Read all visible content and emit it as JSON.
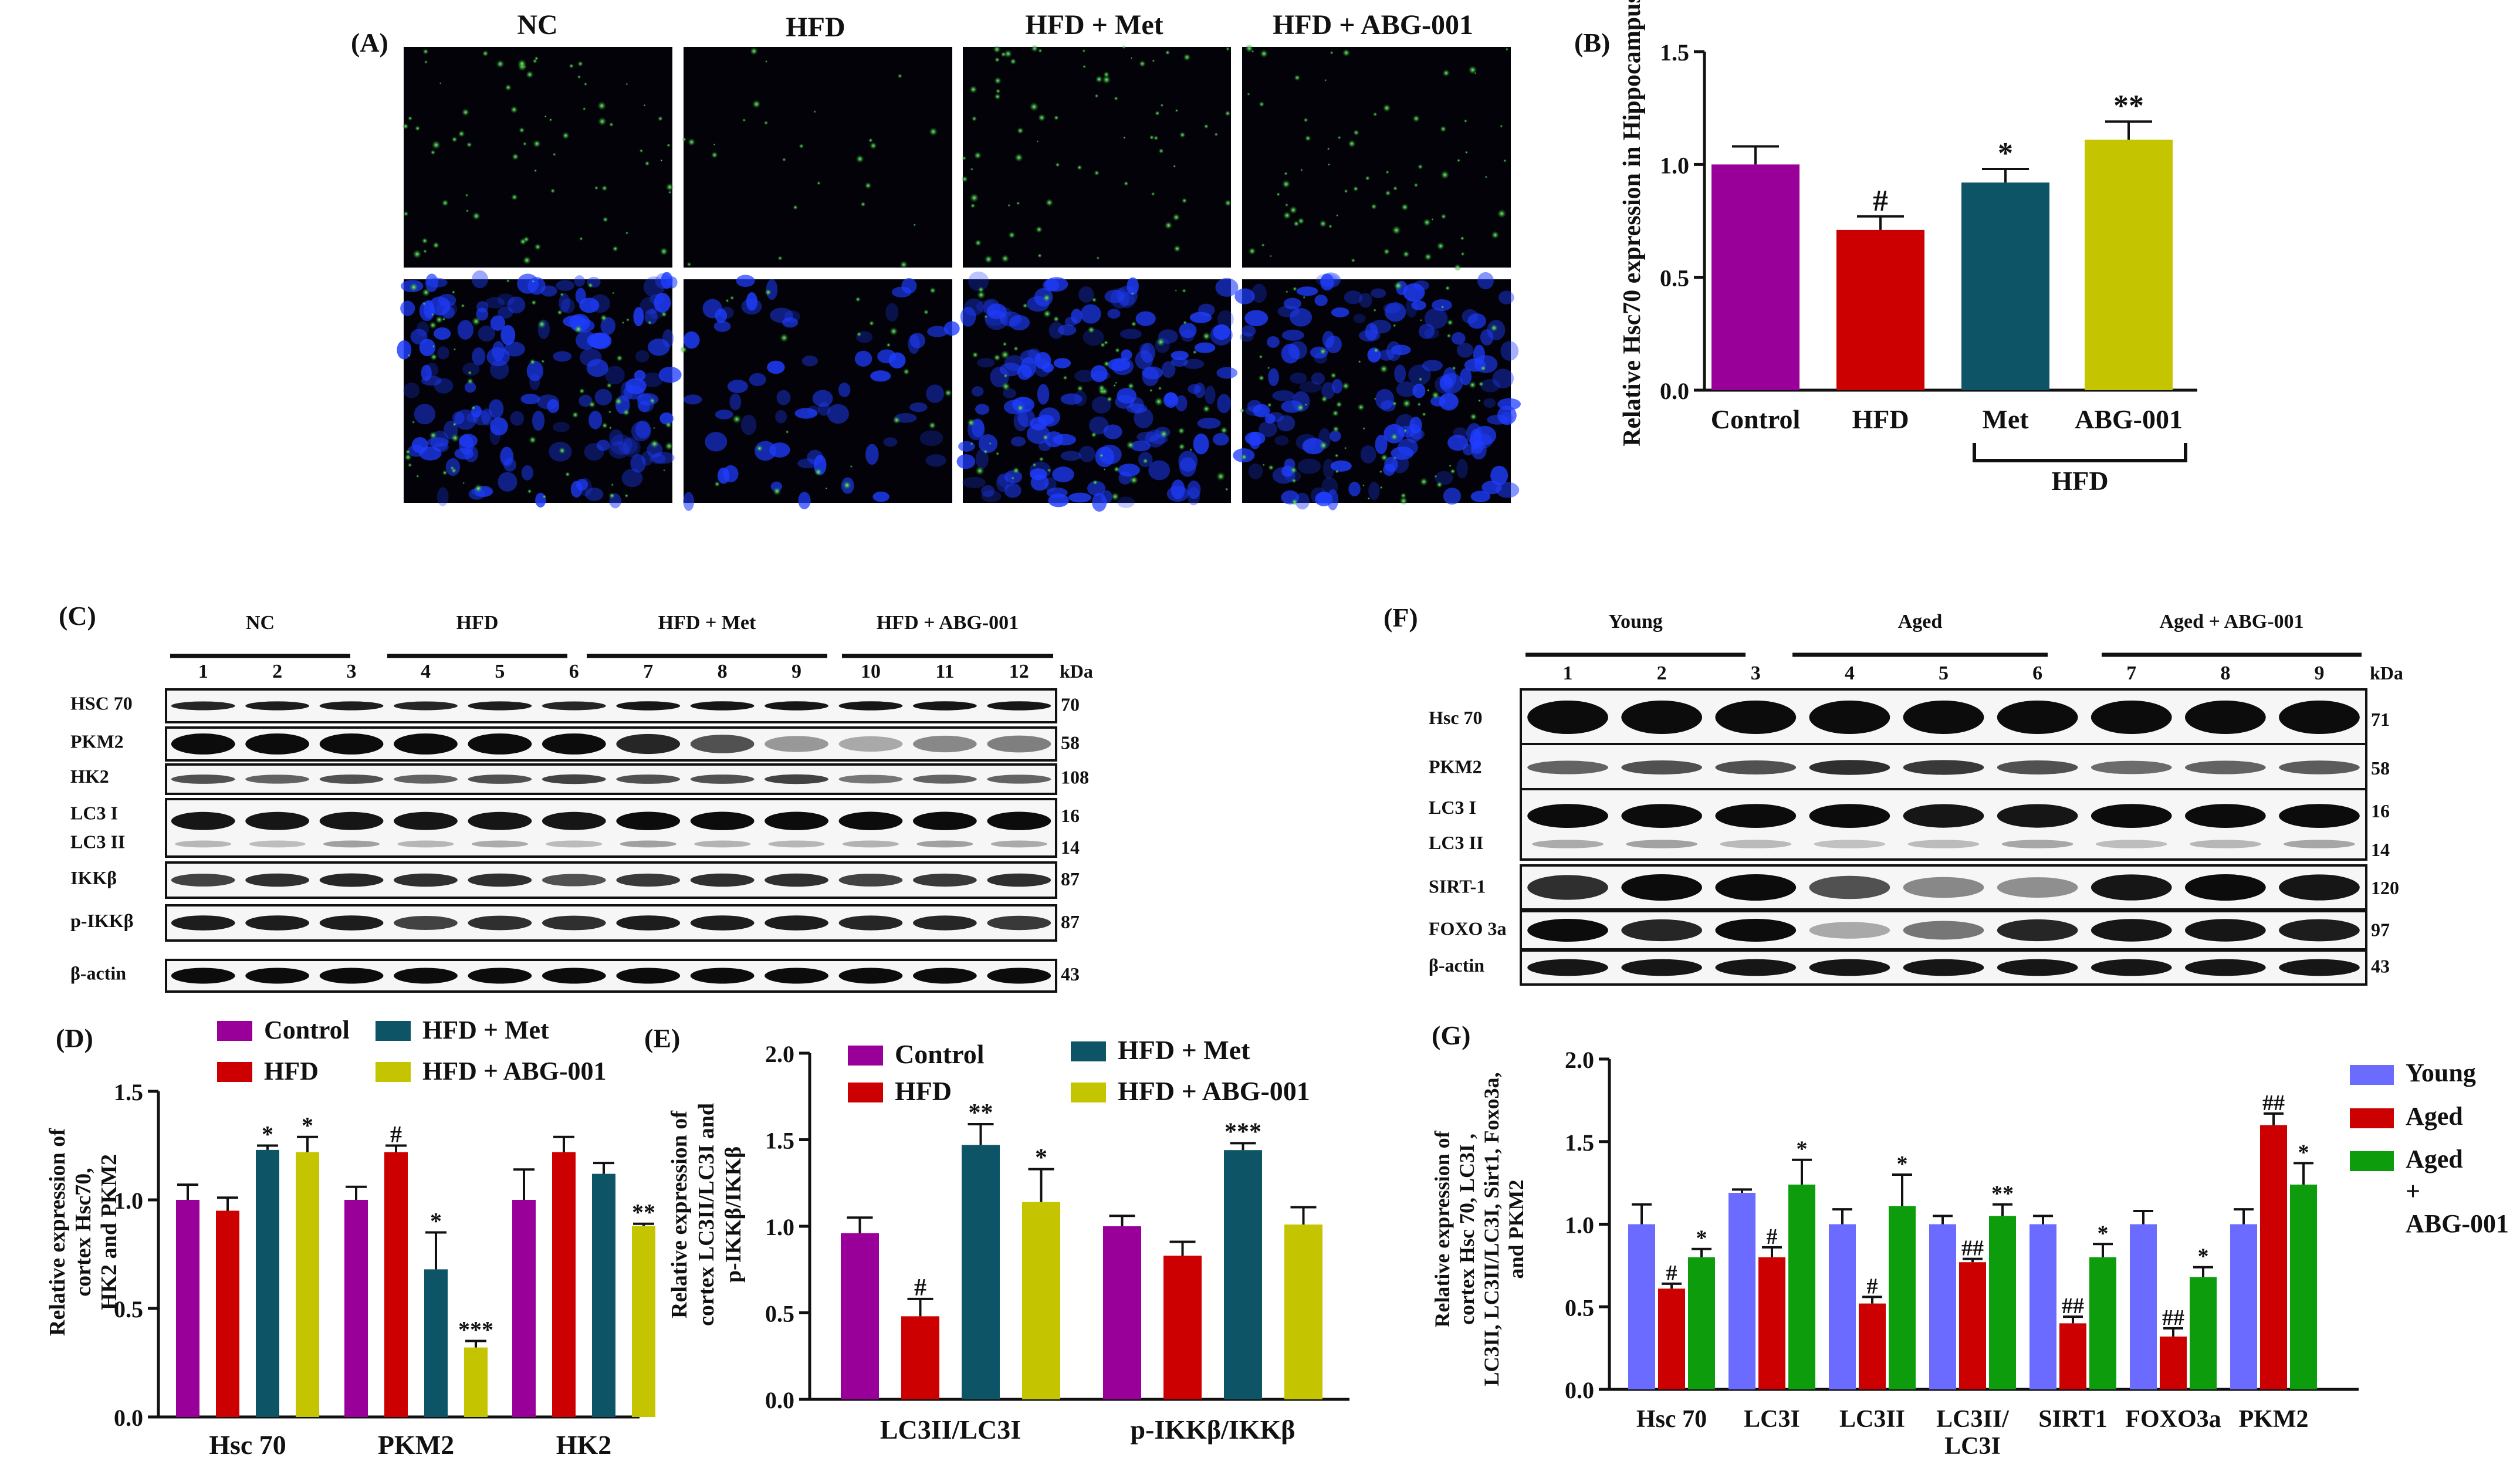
{
  "panels": {
    "A": {
      "label": "(A)",
      "columns": [
        "NC",
        "HFD",
        "HFD + Met",
        "HFD + ABG-001"
      ]
    },
    "C": {
      "label": "(C)",
      "groups": [
        "NC",
        "HFD",
        "HFD + Met",
        "HFD + ABG-001"
      ],
      "lanes": [
        "1",
        "2",
        "3",
        "4",
        "5",
        "6",
        "7",
        "8",
        "9",
        "10",
        "11",
        "12"
      ],
      "kda_label": "kDa",
      "rows": [
        {
          "label": "HSC 70",
          "kda": "70"
        },
        {
          "label": "PKM2",
          "kda": "58"
        },
        {
          "label": "HK2",
          "kda": "108"
        },
        {
          "label": "LC3 I",
          "label2": "LC3 II",
          "kda": "16",
          "kda2": "14"
        },
        {
          "label": "IKKβ",
          "kda": "87"
        },
        {
          "label": "p-IKKβ",
          "kda": "87"
        },
        {
          "label": "β-actin",
          "kda": "43"
        }
      ]
    },
    "F": {
      "label": "(F)",
      "groups": [
        "Young",
        "Aged",
        "Aged + ABG-001"
      ],
      "lanes": [
        "1",
        "2",
        "3",
        "4",
        "5",
        "6",
        "7",
        "8",
        "9"
      ],
      "kda_label": "kDa",
      "rows": [
        {
          "label": "Hsc 70",
          "kda": "71"
        },
        {
          "label": "PKM2",
          "kda": "58"
        },
        {
          "label": "LC3 I",
          "label2": "LC3 II",
          "kda": "16",
          "kda2": "14"
        },
        {
          "label": "SIRT-1",
          "kda": "120"
        },
        {
          "label": "FOXO 3a",
          "kda": "97"
        },
        {
          "label": "β-actin",
          "kda": "43"
        }
      ]
    }
  },
  "colors": {
    "purple": "#990099",
    "red": "#cc0000",
    "teal": "#0d5566",
    "olive": "#c4c400",
    "blue": "#6b6bff",
    "green": "#0c9c0c"
  },
  "chart_data": [
    {
      "id": "B",
      "panel_label": "(B)",
      "type": "bar",
      "ylabel": "Relative Hsc70 expression in Hippocampus",
      "ylim": [
        0,
        1.5
      ],
      "yticks": [
        "0.0",
        "0.5",
        "1.0",
        "1.5"
      ],
      "categories": [
        "Control",
        "HFD",
        "Met",
        "ABG-001"
      ],
      "values": [
        1.0,
        0.71,
        0.92,
        1.11
      ],
      "errors": [
        0.08,
        0.06,
        0.06,
        0.08
      ],
      "sig": [
        "",
        "#",
        "*",
        "**"
      ],
      "group_bracket": "HFD"
    },
    {
      "id": "D",
      "panel_label": "(D)",
      "type": "bar",
      "ylabel": "Relative expression of cortex Hsc70, HK2 and PKM2",
      "ylim": [
        0,
        1.5
      ],
      "yticks": [
        "0.0",
        "0.5",
        "1.0",
        "1.5"
      ],
      "categories": [
        "Hsc 70",
        "PKM2",
        "HK2"
      ],
      "series": [
        {
          "name": "Control",
          "values": [
            1.0,
            1.0,
            1.0
          ],
          "errors": [
            0.07,
            0.06,
            0.14
          ],
          "sig": [
            "",
            "",
            ""
          ]
        },
        {
          "name": "HFD",
          "values": [
            0.95,
            1.22,
            1.22
          ],
          "errors": [
            0.06,
            0.03,
            0.07
          ],
          "sig": [
            "",
            "#",
            ""
          ]
        },
        {
          "name": "HFD + Met",
          "values": [
            1.23,
            0.68,
            1.12
          ],
          "errors": [
            0.02,
            0.17,
            0.05
          ],
          "sig": [
            "*",
            "*",
            ""
          ]
        },
        {
          "name": "HFD + ABG-001",
          "values": [
            1.22,
            0.32,
            0.88
          ],
          "errors": [
            0.07,
            0.03,
            0.01
          ],
          "sig": [
            "*",
            "***",
            "**"
          ]
        }
      ],
      "legend": [
        "Control",
        "HFD",
        "HFD + Met",
        "HFD + ABG-001"
      ]
    },
    {
      "id": "E",
      "panel_label": "(E)",
      "type": "bar",
      "ylabel": "Relative expression of cortex LC3II/LC3I and p-IKKβ/IKKβ",
      "ylim": [
        0,
        2.0
      ],
      "yticks": [
        "0.0",
        "0.5",
        "1.0",
        "1.5",
        "2.0"
      ],
      "categories": [
        "LC3II/LC3I",
        "p-IKKβ/IKKβ"
      ],
      "series": [
        {
          "name": "Control",
          "values": [
            0.96,
            1.0
          ],
          "errors": [
            0.09,
            0.06
          ],
          "sig": [
            "",
            ""
          ]
        },
        {
          "name": "HFD",
          "values": [
            0.48,
            0.83
          ],
          "errors": [
            0.1,
            0.08
          ],
          "sig": [
            "#",
            ""
          ]
        },
        {
          "name": "HFD + Met",
          "values": [
            1.47,
            1.44
          ],
          "errors": [
            0.12,
            0.04
          ],
          "sig": [
            "**",
            "***"
          ]
        },
        {
          "name": "HFD + ABG-001",
          "values": [
            1.14,
            1.01
          ],
          "errors": [
            0.19,
            0.1
          ],
          "sig": [
            "*",
            ""
          ]
        }
      ],
      "legend": [
        "Control",
        "HFD",
        "HFD + Met",
        "HFD + ABG-001"
      ]
    },
    {
      "id": "G",
      "panel_label": "(G)",
      "type": "bar",
      "ylabel": "Relative expression of cortex Hsc 70, LC3I, LC3II, LC3II/LC3I, Sirt1, Foxo3a, and PKM2",
      "ylim": [
        0,
        2.0
      ],
      "yticks": [
        "0.0",
        "0.5",
        "1.0",
        "1.5",
        "2.0"
      ],
      "categories": [
        "Hsc 70",
        "LC3I",
        "LC3II",
        "LC3II/ LC3I",
        "SIRT1",
        "FOXO3a",
        "PKM2"
      ],
      "series": [
        {
          "name": "Young",
          "values": [
            1.0,
            1.19,
            1.0,
            1.0,
            1.0,
            1.0,
            1.0
          ],
          "errors": [
            0.12,
            0.02,
            0.09,
            0.05,
            0.05,
            0.08,
            0.09
          ],
          "sig": [
            "",
            "",
            "",
            "",
            "",
            "",
            ""
          ]
        },
        {
          "name": "Aged",
          "values": [
            0.61,
            0.8,
            0.52,
            0.77,
            0.4,
            0.32,
            1.6
          ],
          "errors": [
            0.03,
            0.06,
            0.04,
            0.02,
            0.04,
            0.05,
            0.07
          ],
          "sig": [
            "#",
            "#",
            "#",
            "##",
            "##",
            "##",
            "##"
          ]
        },
        {
          "name": "Aged + ABG-001",
          "values": [
            0.8,
            1.24,
            1.11,
            1.05,
            0.8,
            0.68,
            1.24
          ],
          "errors": [
            0.05,
            0.15,
            0.19,
            0.07,
            0.08,
            0.06,
            0.13
          ],
          "sig": [
            "*",
            "*",
            "*",
            "**",
            "*",
            "*",
            "*"
          ]
        }
      ],
      "legend": [
        "Young",
        "Aged",
        "Aged + ABG-001"
      ],
      "legend_lines": [
        [
          "Young"
        ],
        [
          "Aged"
        ],
        [
          "Aged",
          "+",
          "ABG-001"
        ]
      ]
    }
  ]
}
